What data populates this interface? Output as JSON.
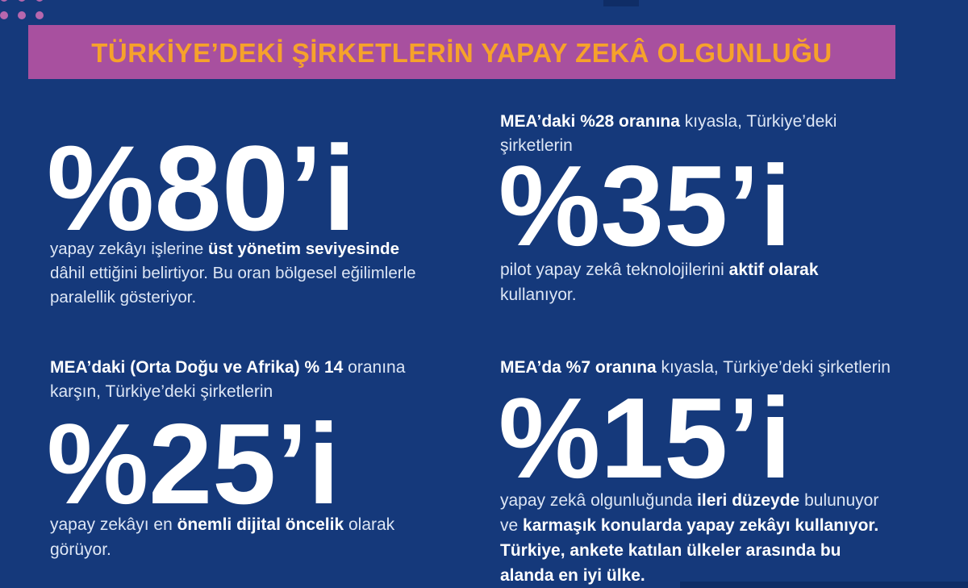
{
  "banner": {
    "title": "TÜRKİYE’DEKİ ŞİRKETLERİN YAPAY ZEKÂ OLGUNLUĞU"
  },
  "colors": {
    "background": "#15397b",
    "banner": "#a8509f",
    "title_text": "#f6a22b",
    "dots": "#b767ae",
    "body_text": "#dde6f5",
    "bold_text": "#ffffff",
    "big_number": "#ffffff"
  },
  "stats": [
    {
      "value": "%80’i",
      "caption": [
        {
          "t": "yapay zekâyı işlerine "
        },
        {
          "t": "üst yönetim seviyesinde",
          "b": true
        },
        {
          "t": "\ndâhil ettiğini belirtiyor. Bu oran bölgesel eğilimlerle\nparalellik gösteriyor."
        }
      ]
    },
    {
      "intro": [
        {
          "t": "MEA’daki %28 oranına",
          "b": true
        },
        {
          "t": " kıyasla, Türkiye’deki\nşirketlerin"
        }
      ],
      "value": "%35’i",
      "caption": [
        {
          "t": "pilot yapay zekâ teknolojilerini "
        },
        {
          "t": "aktif olarak",
          "b": true
        },
        {
          "t": "\nkullanıyor."
        }
      ]
    },
    {
      "intro": [
        {
          "t": "MEA’daki (Orta Doğu ve Afrika) % 14",
          "b": true
        },
        {
          "t": " oranına\nkarşın, Türkiye’deki şirketlerin"
        }
      ],
      "value": "%25’i",
      "caption": [
        {
          "t": "yapay zekâyı en "
        },
        {
          "t": "önemli dijital öncelik",
          "b": true
        },
        {
          "t": " olarak\ngörüyor."
        }
      ]
    },
    {
      "intro": [
        {
          "t": "MEA’da %7 oranına",
          "b": true
        },
        {
          "t": " kıyasla, Türkiye’deki şirketlerin"
        }
      ],
      "value": "%15’i",
      "caption": [
        {
          "t": "yapay zekâ olgunluğunda "
        },
        {
          "t": "ileri düzeyde",
          "b": true
        },
        {
          "t": " bulunuyor\nve "
        },
        {
          "t": "karmaşık konularda yapay zekâyı kullanıyor.\nTürkiye, ankete katılan ülkeler arasında bu\nalanda en iyi ülke.",
          "b": true
        }
      ]
    }
  ],
  "chart_data": {
    "type": "table",
    "title": "TÜRKİYE’DEKİ ŞİRKETLERİN YAPAY ZEKÂ OLGUNLUĞU",
    "unit": "%",
    "categories": [
      "Yapay zekâyı işlerine üst yönetim seviyesinde dâhil etme",
      "Pilot yapay zekâ teknolojilerini aktif olarak kullanma",
      "Yapay zekâyı en önemli dijital öncelik olarak görme",
      "Yapay zekâ olgunluğunda ileri düzeyde bulunma"
    ],
    "series": [
      {
        "name": "Türkiye’deki şirketler",
        "values": [
          80,
          35,
          25,
          15
        ]
      },
      {
        "name": "MEA (Orta Doğu ve Afrika)",
        "values": [
          null,
          28,
          14,
          7
        ]
      }
    ]
  }
}
